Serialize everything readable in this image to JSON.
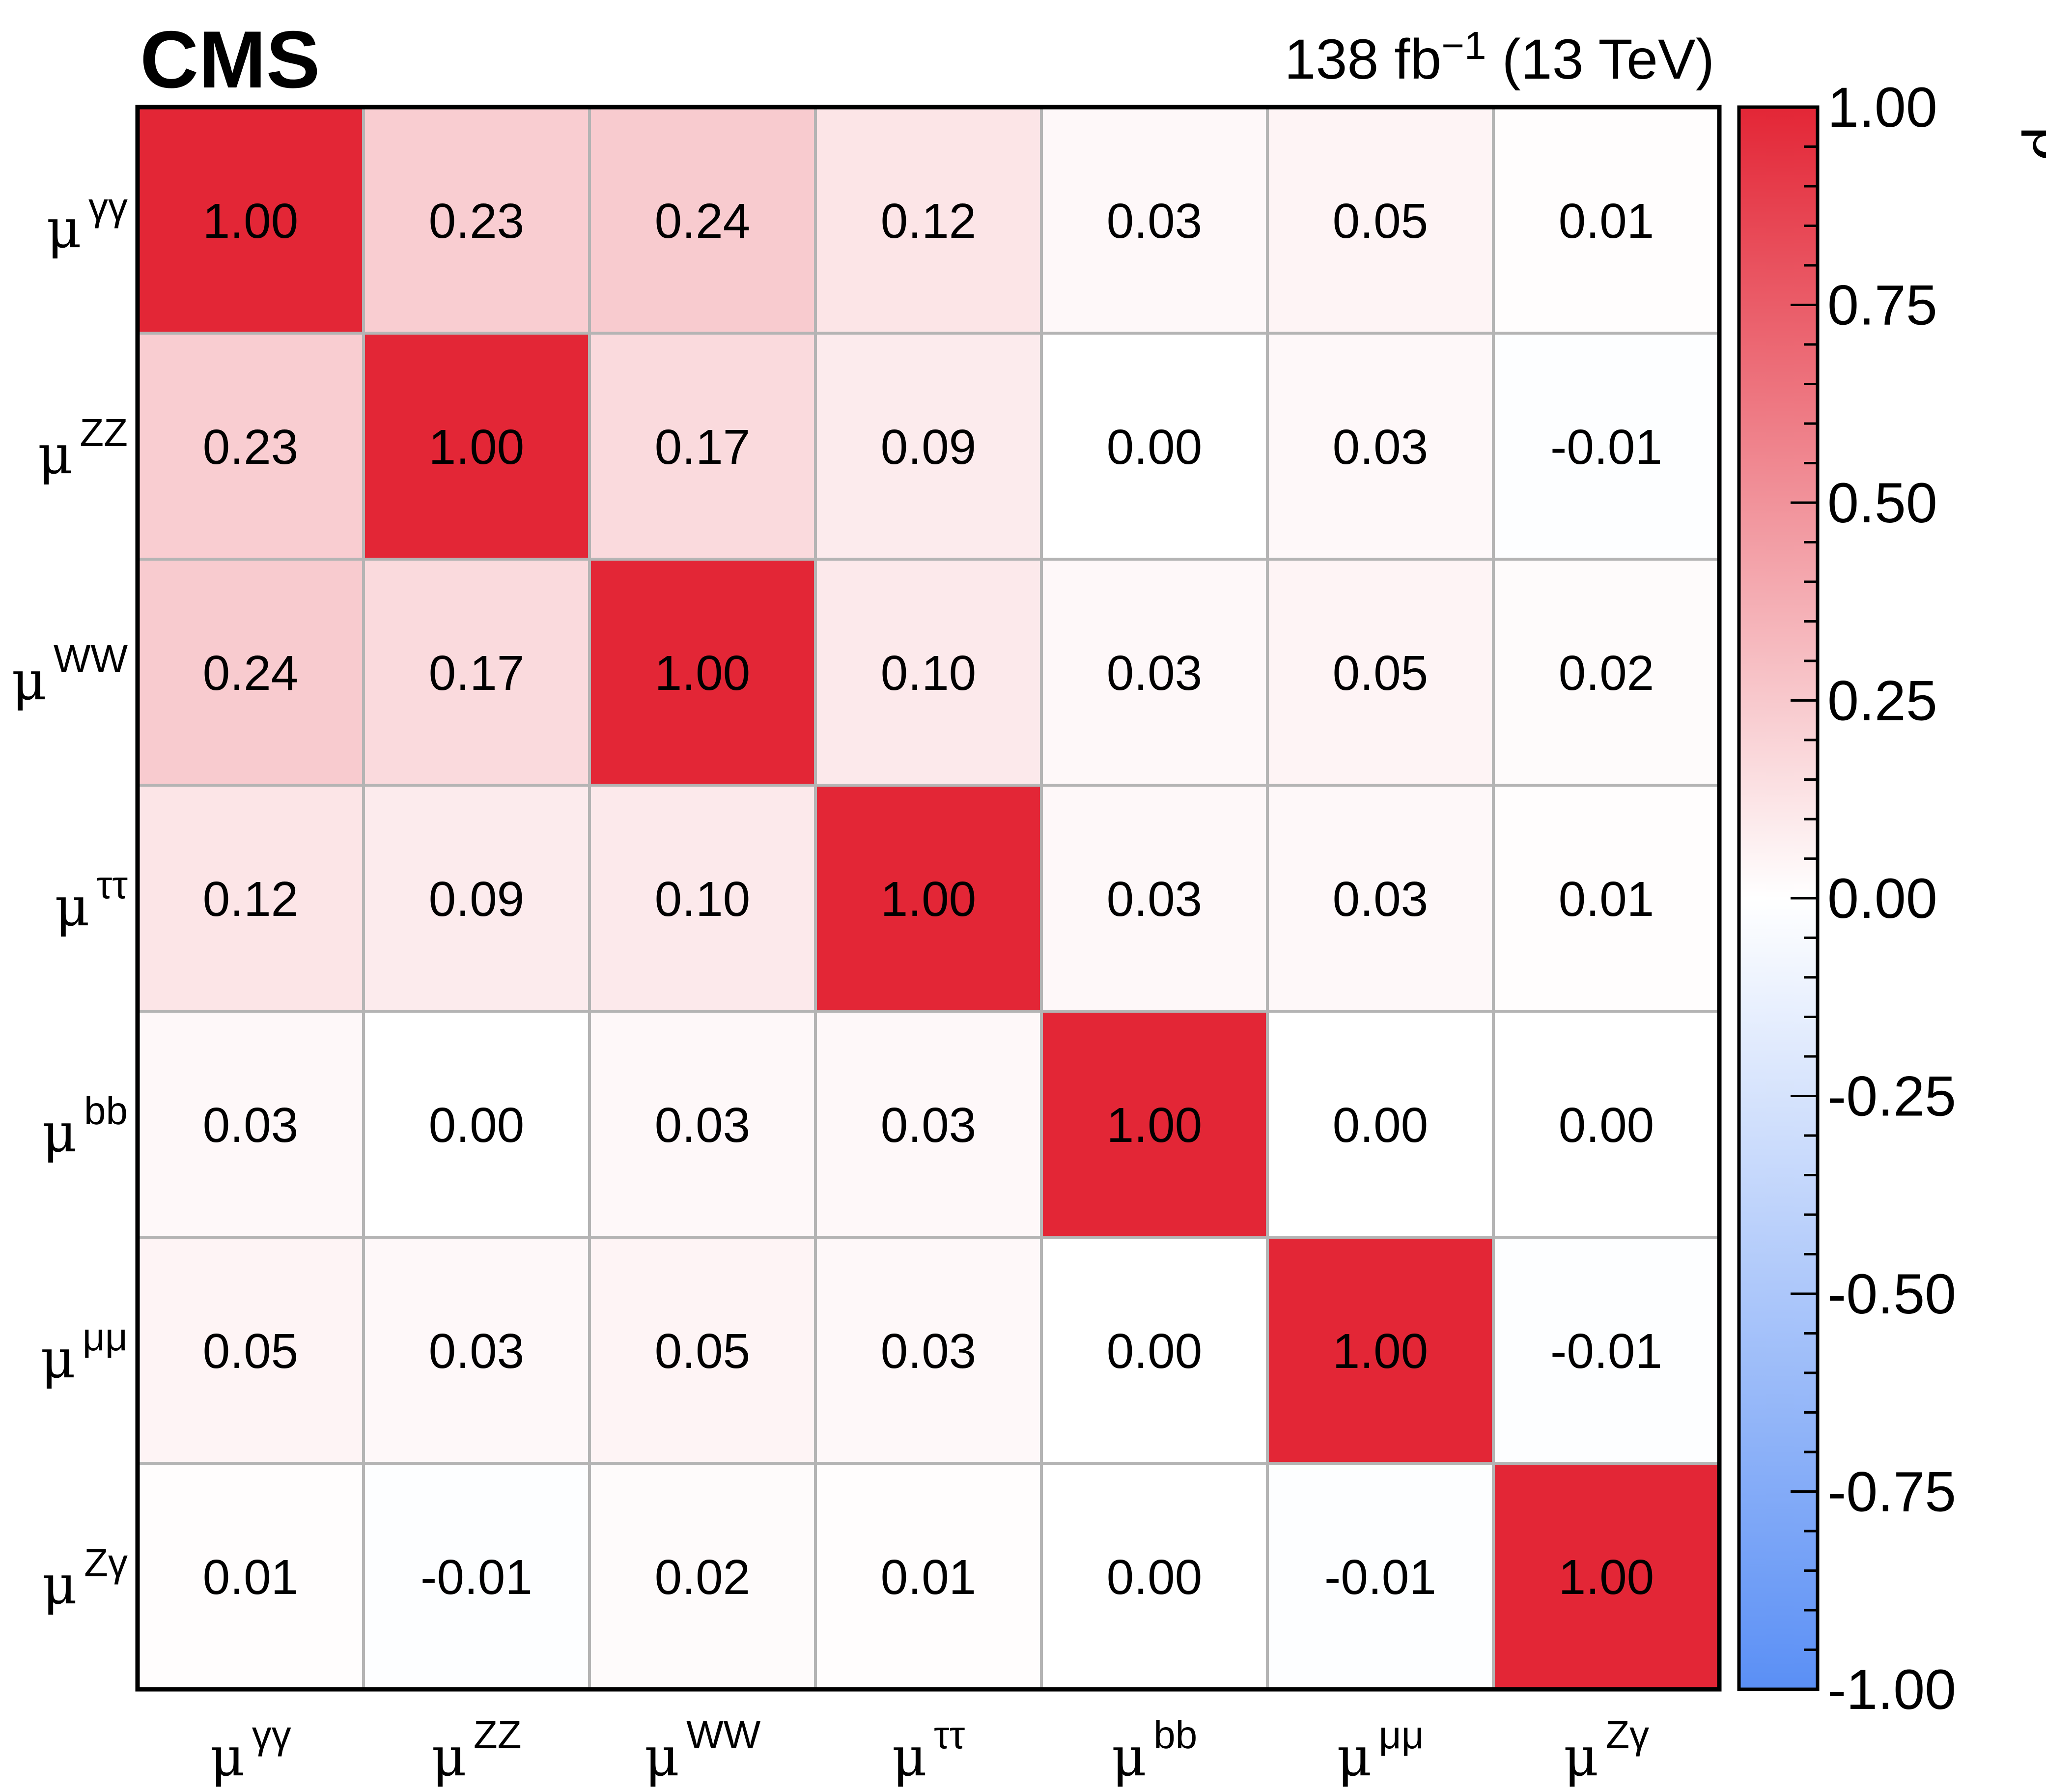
{
  "experiment": "CMS",
  "luminosity": {
    "prefix": "138 fb",
    "exponent": "−1",
    "suffix": " (13 TeV)"
  },
  "colors": {
    "negative": "#5a8ff5",
    "zero": "#ffffff",
    "positive": "#e32636",
    "grid": "#b4b4b4",
    "frame": "#000000"
  },
  "chart_data": {
    "type": "heatmap",
    "x_labels": [
      {
        "base": "μ",
        "sup": "γγ"
      },
      {
        "base": "μ",
        "sup": "ZZ"
      },
      {
        "base": "μ",
        "sup": "WW"
      },
      {
        "base": "μ",
        "sup": "ττ"
      },
      {
        "base": "μ",
        "sup": "bb"
      },
      {
        "base": "μ",
        "sup": "μμ"
      },
      {
        "base": "μ",
        "sup": "Zγ"
      }
    ],
    "y_labels": [
      {
        "base": "μ",
        "sup": "γγ"
      },
      {
        "base": "μ",
        "sup": "ZZ"
      },
      {
        "base": "μ",
        "sup": "WW"
      },
      {
        "base": "μ",
        "sup": "ττ"
      },
      {
        "base": "μ",
        "sup": "bb"
      },
      {
        "base": "μ",
        "sup": "μμ"
      },
      {
        "base": "μ",
        "sup": "Zγ"
      }
    ],
    "values": [
      [
        1.0,
        0.23,
        0.24,
        0.12,
        0.03,
        0.05,
        0.01
      ],
      [
        0.23,
        1.0,
        0.17,
        0.09,
        0.0,
        0.03,
        -0.01
      ],
      [
        0.24,
        0.17,
        1.0,
        0.1,
        0.03,
        0.05,
        0.02
      ],
      [
        0.12,
        0.09,
        0.1,
        1.0,
        0.03,
        0.03,
        0.01
      ],
      [
        0.03,
        0.0,
        0.03,
        0.03,
        1.0,
        0.0,
        0.0
      ],
      [
        0.05,
        0.03,
        0.05,
        0.03,
        0.0,
        1.0,
        -0.01
      ],
      [
        0.01,
        -0.01,
        0.02,
        0.01,
        0.0,
        -0.01,
        1.0
      ]
    ],
    "value_format_decimals": 2,
    "colorbar": {
      "label": "ρ",
      "range": [
        -1.0,
        1.0
      ],
      "ticks": [
        "1.00",
        "0.75",
        "0.50",
        "0.25",
        "0.00",
        "-0.25",
        "-0.50",
        "-0.75",
        "-1.00"
      ]
    }
  }
}
